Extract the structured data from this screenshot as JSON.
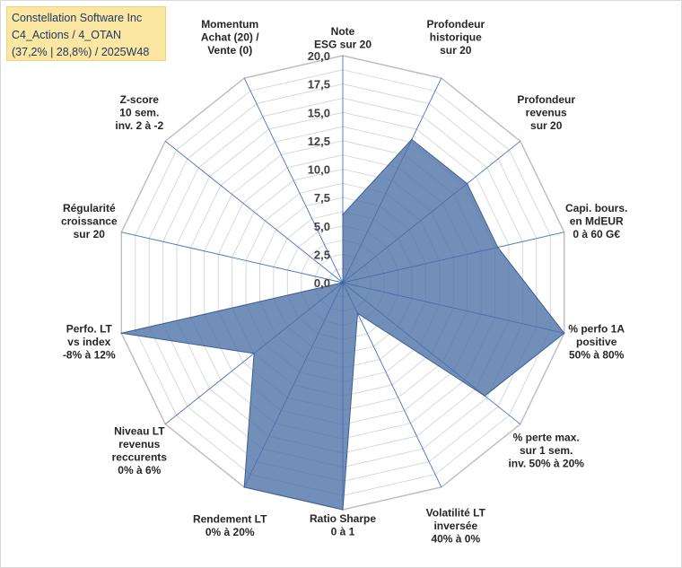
{
  "header": {
    "line1": "Constellation Software Inc",
    "line2": "C4_Actions / 4_OTAN",
    "line3": "(37,2% | 28,8%) / 2025W48"
  },
  "chart_data": {
    "type": "radar",
    "title": "Constellation Software Inc",
    "rlim": [
      0,
      20
    ],
    "ticks": [
      "0,0",
      "2,5",
      "5,0",
      "7,5",
      "10,0",
      "12,5",
      "15,0",
      "17,5",
      "20,0"
    ],
    "categories": [
      [
        "Note",
        "ESG sur 20"
      ],
      [
        "Profondeur",
        "historique",
        "sur 20"
      ],
      [
        "Profondeur",
        "revenus",
        "sur 20"
      ],
      [
        "Capi. bours.",
        "en MdEUR",
        "0 à 60 G€"
      ],
      [
        "% perfo 1A",
        "positive",
        "50% à 80%"
      ],
      [
        "% perte max.",
        "sur 1 sem.",
        "inv. 50% à 20%"
      ],
      [
        "Volatilité LT",
        "inversée",
        "40% à 0%"
      ],
      [
        "Ratio Sharpe",
        "0 à 1"
      ],
      [
        "Rendement LT",
        "0% à 20%"
      ],
      [
        "Niveau LT",
        "revenus",
        "reccurents",
        "0% à 6%"
      ],
      [
        "Perfo. LT",
        "vs index",
        "-8% à 12%"
      ],
      [
        "Régularité",
        "croissance",
        "sur 20"
      ],
      [
        "Z-score",
        "10 sem.",
        "inv. 2 à -2"
      ],
      [
        "Momentum",
        "Achat (20) /",
        "Vente (0)"
      ]
    ],
    "series": [
      {
        "name": "Constellation Software Inc",
        "values": [
          6.0,
          14.0,
          14.0,
          14.0,
          20.0,
          16.0,
          3.0,
          20.0,
          20.0,
          10.0,
          20.0,
          0.0,
          0.0,
          0.0
        ]
      }
    ],
    "colors": {
      "fill": "#4a6fa5",
      "grid": "#d9d9d9",
      "spoke": "#4472c4"
    },
    "grid": true,
    "legend": "none"
  }
}
